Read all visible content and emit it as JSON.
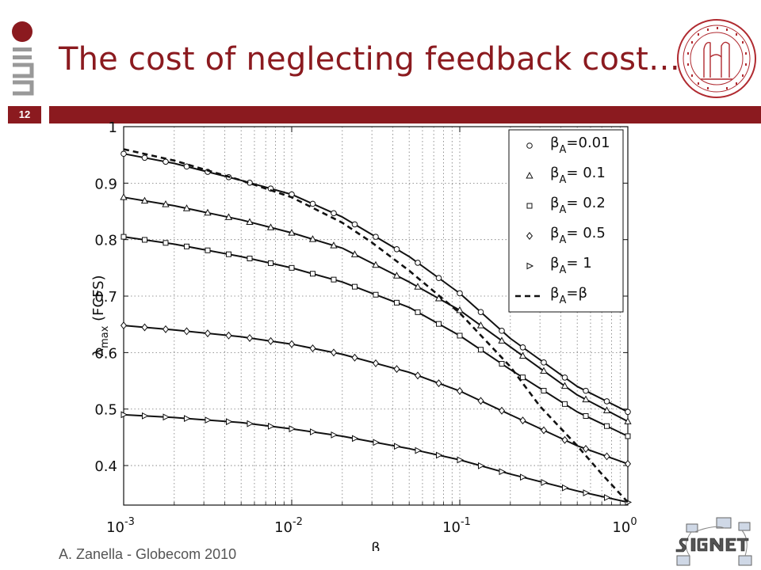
{
  "slide": {
    "title": "The cost of neglecting feedback cost…",
    "number": "12",
    "footer": "A. Zanella - Globecom 2010",
    "accent": "#8b1a1f"
  },
  "chart_data": {
    "type": "line",
    "xscale": "log",
    "xlim": [
      0.001,
      1
    ],
    "ylim": [
      0.33,
      1.0
    ],
    "grid": true,
    "legend_position": "top-right",
    "xticks": [
      {
        "value": 0.001,
        "base": "10",
        "exp": "-3"
      },
      {
        "value": 0.01,
        "base": "10",
        "exp": "-2"
      },
      {
        "value": 0.1,
        "base": "10",
        "exp": "-1"
      },
      {
        "value": 1,
        "base": "10",
        "exp": "0"
      }
    ],
    "yticks": [
      0.4,
      0.5,
      0.6,
      0.7,
      0.8,
      0.9,
      1
    ],
    "ytick_labels": [
      "0.4",
      "0.5",
      "0.6",
      "0.7",
      "0.8",
      "0.9",
      "1"
    ],
    "xlabel": "β",
    "ylabel": {
      "symbol": "λ",
      "sub": "max",
      "suffix": " (FCFS)"
    },
    "series": [
      {
        "name": "β",
        "sub": "A",
        "label_suffix": "=0.01",
        "marker": "circle",
        "dashed": false,
        "x": [
          0.001,
          0.002,
          0.005,
          0.01,
          0.02,
          0.05,
          0.1,
          0.2,
          0.5,
          1
        ],
        "y": [
          0.952,
          0.935,
          0.905,
          0.88,
          0.84,
          0.77,
          0.705,
          0.625,
          0.54,
          0.495
        ]
      },
      {
        "name": "β",
        "sub": "A",
        "label_suffix": "= 0.1",
        "marker": "triangle",
        "dashed": false,
        "x": [
          0.001,
          0.002,
          0.005,
          0.01,
          0.02,
          0.05,
          0.1,
          0.2,
          0.5,
          1
        ],
        "y": [
          0.875,
          0.86,
          0.835,
          0.812,
          0.785,
          0.725,
          0.675,
          0.61,
          0.525,
          0.478
        ]
      },
      {
        "name": "β",
        "sub": "A",
        "label_suffix": "= 0.2",
        "marker": "square",
        "dashed": false,
        "x": [
          0.001,
          0.002,
          0.005,
          0.01,
          0.02,
          0.05,
          0.1,
          0.2,
          0.5,
          1
        ],
        "y": [
          0.805,
          0.792,
          0.77,
          0.75,
          0.725,
          0.68,
          0.63,
          0.57,
          0.495,
          0.452
        ]
      },
      {
        "name": "β",
        "sub": "A",
        "label_suffix": "= 0.5",
        "marker": "diamond",
        "dashed": false,
        "x": [
          0.001,
          0.002,
          0.005,
          0.01,
          0.02,
          0.05,
          0.1,
          0.2,
          0.5,
          1
        ],
        "y": [
          0.648,
          0.64,
          0.628,
          0.615,
          0.597,
          0.565,
          0.532,
          0.49,
          0.435,
          0.403
        ]
      },
      {
        "name": "β",
        "sub": "A",
        "label_suffix": "=   1",
        "marker": "triangle-right",
        "dashed": false,
        "x": [
          0.001,
          0.002,
          0.005,
          0.01,
          0.02,
          0.05,
          0.1,
          0.2,
          0.5,
          1
        ],
        "y": [
          0.49,
          0.485,
          0.476,
          0.465,
          0.452,
          0.43,
          0.41,
          0.385,
          0.355,
          0.335
        ]
      },
      {
        "name": "β",
        "sub": "A",
        "label_suffix": "=β",
        "marker": "none",
        "dashed": true,
        "x": [
          0.001,
          0.002,
          0.005,
          0.01,
          0.02,
          0.03,
          0.05,
          0.1,
          0.2,
          0.3,
          0.5,
          0.7,
          1
        ],
        "y": [
          0.96,
          0.94,
          0.905,
          0.875,
          0.83,
          0.795,
          0.745,
          0.67,
          0.575,
          0.505,
          0.435,
          0.385,
          0.335
        ]
      }
    ]
  }
}
